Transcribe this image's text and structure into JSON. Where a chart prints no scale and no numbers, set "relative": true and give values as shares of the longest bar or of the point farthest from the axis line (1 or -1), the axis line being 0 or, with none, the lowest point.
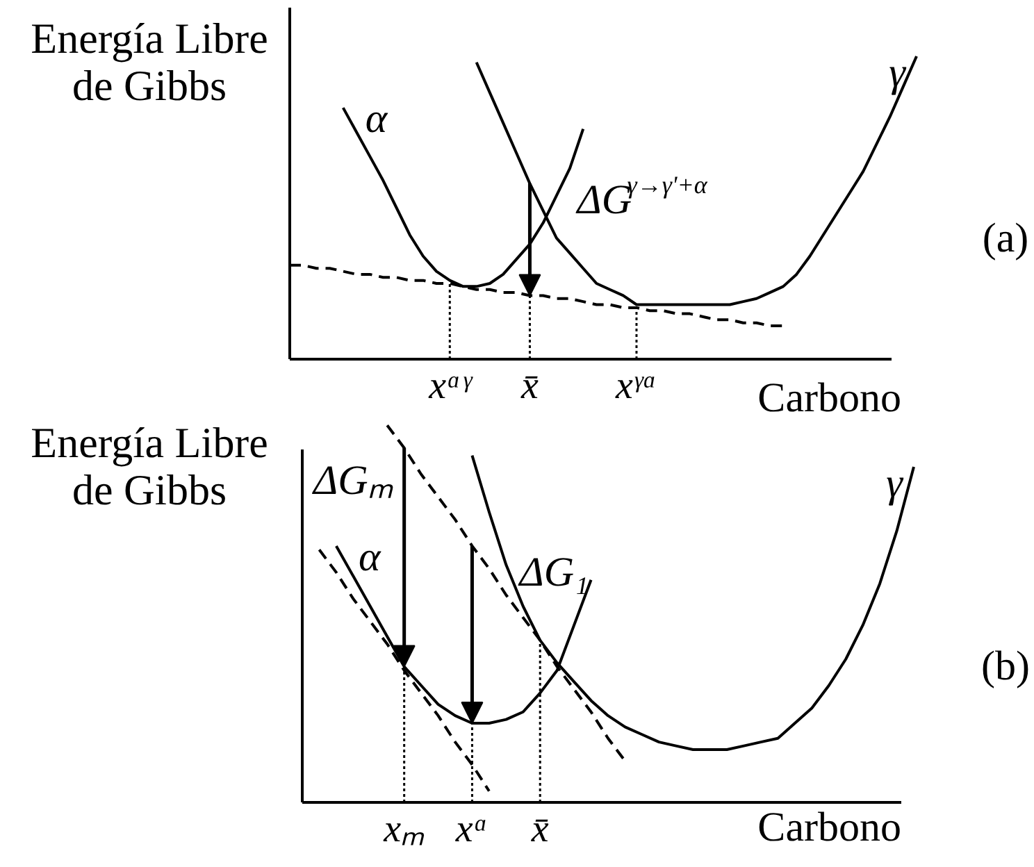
{
  "chart_data": [
    {
      "type": "line",
      "relative": true,
      "xlabel": "Carbono",
      "ylabel": "Energía Libre de Gibbs",
      "categories": [
        null,
        null,
        null,
        null,
        null,
        null,
        null,
        null,
        null,
        null,
        null,
        null,
        "xᵅᵞ",
        null,
        null,
        null,
        null,
        null,
        "x̄",
        null,
        null,
        null,
        null,
        null,
        null,
        null,
        "xᵞᵅ",
        null,
        null,
        null,
        null,
        null,
        null,
        null,
        null,
        null,
        null,
        null,
        null,
        null,
        null,
        null,
        null,
        null,
        null,
        null,
        null,
        null
      ],
      "series": [
        {
          "name": "α",
          "color": "#000000",
          "values": [
            null,
            null,
            null,
            null,
            0.83,
            0.75,
            0.67,
            0.59,
            0.5,
            0.41,
            0.34,
            0.29,
            0.26,
            0.24,
            0.24,
            0.25,
            0.28,
            0.33,
            0.38,
            0.45,
            0.54,
            0.63,
            0.76,
            null,
            null,
            null,
            null,
            null,
            null,
            null,
            null,
            null,
            null,
            null,
            null,
            null,
            null,
            null,
            null,
            null,
            null,
            null,
            null,
            null,
            null,
            null,
            null,
            null
          ]
        },
        {
          "name": "γ",
          "color": "#000000",
          "values": [
            null,
            null,
            null,
            null,
            null,
            null,
            null,
            null,
            null,
            null,
            null,
            null,
            null,
            null,
            0.98,
            0.88,
            0.78,
            0.68,
            0.58,
            0.49,
            0.4,
            0.35,
            0.3,
            0.25,
            0.23,
            0.21,
            0.18,
            0.18,
            0.18,
            0.18,
            0.18,
            0.18,
            0.18,
            0.18,
            0.19,
            0.2,
            0.22,
            0.24,
            0.28,
            0.34,
            0.41,
            0.48,
            0.55,
            0.62,
            0.71,
            0.8,
            0.9,
            1.0
          ]
        },
        {
          "color": "#000000",
          "line_style": "dashed",
          "values": [
            0.31,
            0.31,
            0.3,
            0.3,
            0.29,
            0.28,
            0.28,
            0.27,
            0.27,
            0.26,
            0.26,
            0.25,
            0.25,
            0.24,
            0.23,
            0.23,
            0.22,
            0.22,
            0.21,
            0.21,
            0.2,
            0.2,
            0.19,
            0.18,
            0.18,
            0.17,
            0.17,
            0.16,
            0.16,
            0.15,
            0.15,
            0.14,
            0.13,
            0.13,
            0.12,
            0.12,
            0.11,
            0.11,
            null,
            null,
            null,
            null,
            null,
            null,
            null,
            null,
            null,
            null
          ]
        },
        {
          "color": "#000000",
          "line_style": "dotted",
          "x": [
            "xᵅᵞ",
            "xᵅᵞ"
          ],
          "values": [
            0,
            0.25
          ]
        },
        {
          "color": "#000000",
          "line_style": "dotted",
          "x": [
            "x̄",
            "x̄"
          ],
          "values": [
            0,
            0.21
          ]
        },
        {
          "color": "#000000",
          "line_style": "dotted",
          "x": [
            "xᵞᵅ",
            "xᵞᵅ"
          ],
          "values": [
            0,
            0.17
          ]
        }
      ],
      "annotations": [
        "(a)",
        {
          "text": "ΔG$^{γ→γ'+α}$",
          "x": "x̄",
          "y": 0.58
        }
      ]
    },
    {
      "type": "line",
      "relative": true,
      "xlabel": "Carbono",
      "ylabel": "Energía Libre de Gibbs",
      "categories": [
        null,
        null,
        null,
        null,
        null,
        null,
        "xₘ",
        null,
        null,
        null,
        "xᵅ",
        null,
        null,
        null,
        "x̄",
        null,
        null,
        null,
        null,
        null,
        null,
        null,
        null,
        null,
        null,
        null,
        null,
        null,
        null,
        null,
        null,
        null,
        null,
        null,
        null,
        null,
        null
      ],
      "series": [
        {
          "name": "α",
          "color": "#000000",
          "values": [
            null,
            null,
            0.68,
            0.6,
            0.52,
            0.44,
            0.36,
            0.31,
            0.26,
            0.23,
            0.21,
            0.21,
            0.22,
            0.24,
            0.29,
            0.35,
            0.47,
            0.59,
            null,
            null,
            null,
            null,
            null,
            null,
            null,
            null,
            null,
            null,
            null,
            null,
            null,
            null,
            null,
            null,
            null,
            null,
            null
          ]
        },
        {
          "name": "γ",
          "color": "#000000",
          "values": [
            null,
            null,
            null,
            null,
            null,
            null,
            null,
            null,
            null,
            null,
            0.92,
            0.77,
            0.63,
            0.52,
            0.43,
            0.37,
            0.32,
            0.27,
            0.23,
            0.2,
            0.18,
            0.16,
            0.15,
            0.14,
            0.14,
            0.14,
            0.15,
            0.16,
            0.17,
            0.21,
            0.25,
            0.31,
            0.38,
            0.47,
            0.58,
            0.72,
            0.89
          ]
        },
        {
          "color": "#000000",
          "line_style": "dashed",
          "values": [
            null,
            0.67,
            0.61,
            0.54,
            0.48,
            0.42,
            0.35,
            0.29,
            0.23,
            0.16,
            0.1,
            0.03,
            null,
            null,
            null,
            null,
            null,
            null,
            null,
            null,
            null,
            null,
            null,
            null,
            null,
            null,
            null,
            null,
            null,
            null,
            null,
            null,
            null,
            null,
            null,
            null,
            null
          ]
        },
        {
          "color": "#000000",
          "line_style": "dashed",
          "values": [
            null,
            null,
            null,
            null,
            null,
            1.0,
            0.94,
            0.87,
            0.81,
            0.75,
            0.68,
            0.62,
            0.55,
            0.49,
            0.43,
            0.36,
            0.3,
            0.24,
            0.17,
            0.11,
            null,
            null,
            null,
            null,
            null,
            null,
            null,
            null,
            null,
            null,
            null,
            null,
            null,
            null,
            null,
            null,
            null
          ]
        },
        {
          "color": "#000000",
          "line_style": "dotted",
          "x": [
            "xₘ",
            "xₘ"
          ],
          "values": [
            0,
            0.36
          ]
        },
        {
          "color": "#000000",
          "line_style": "dotted",
          "x": [
            "xᵅ",
            "xᵅ"
          ],
          "values": [
            0,
            0.21
          ]
        },
        {
          "color": "#000000",
          "line_style": "dotted",
          "x": [
            "x̄",
            "x̄"
          ],
          "values": [
            0,
            0.43
          ]
        }
      ],
      "annotations": [
        "(b)",
        {
          "text": "ΔGₘ",
          "x": "xₘ",
          "y": 0.94
        },
        {
          "text": "ΔG₁",
          "x": "xᵅ",
          "y": 0.68
        }
      ]
    }
  ]
}
